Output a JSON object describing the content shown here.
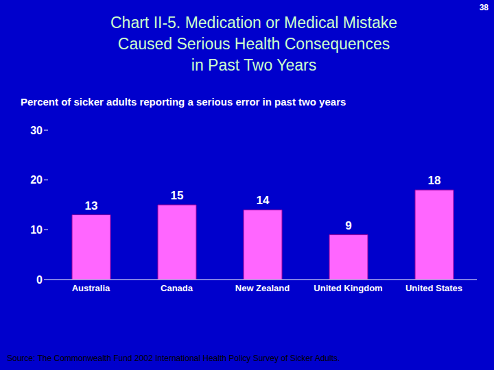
{
  "chart_data": {
    "type": "bar",
    "title": "Chart II-5. Medication or Medical Mistake\nCaused Serious Health Consequences\nin Past Two Years",
    "slide_number": "38",
    "subtitle": "Percent of sicker adults reporting a serious error in past two years",
    "source": "Source: The Commonwealth Fund 2002 International Health Policy Survey of Sicker Adults.",
    "categories": [
      "Australia",
      "Canada",
      "New Zealand",
      "United Kingdom",
      "United States"
    ],
    "values": [
      13,
      15,
      14,
      9,
      18
    ],
    "color": "#FF66FF",
    "ylim": [
      0,
      30
    ],
    "yticks": [
      0,
      10,
      20,
      30
    ],
    "grid": false,
    "data_labels": true
  }
}
